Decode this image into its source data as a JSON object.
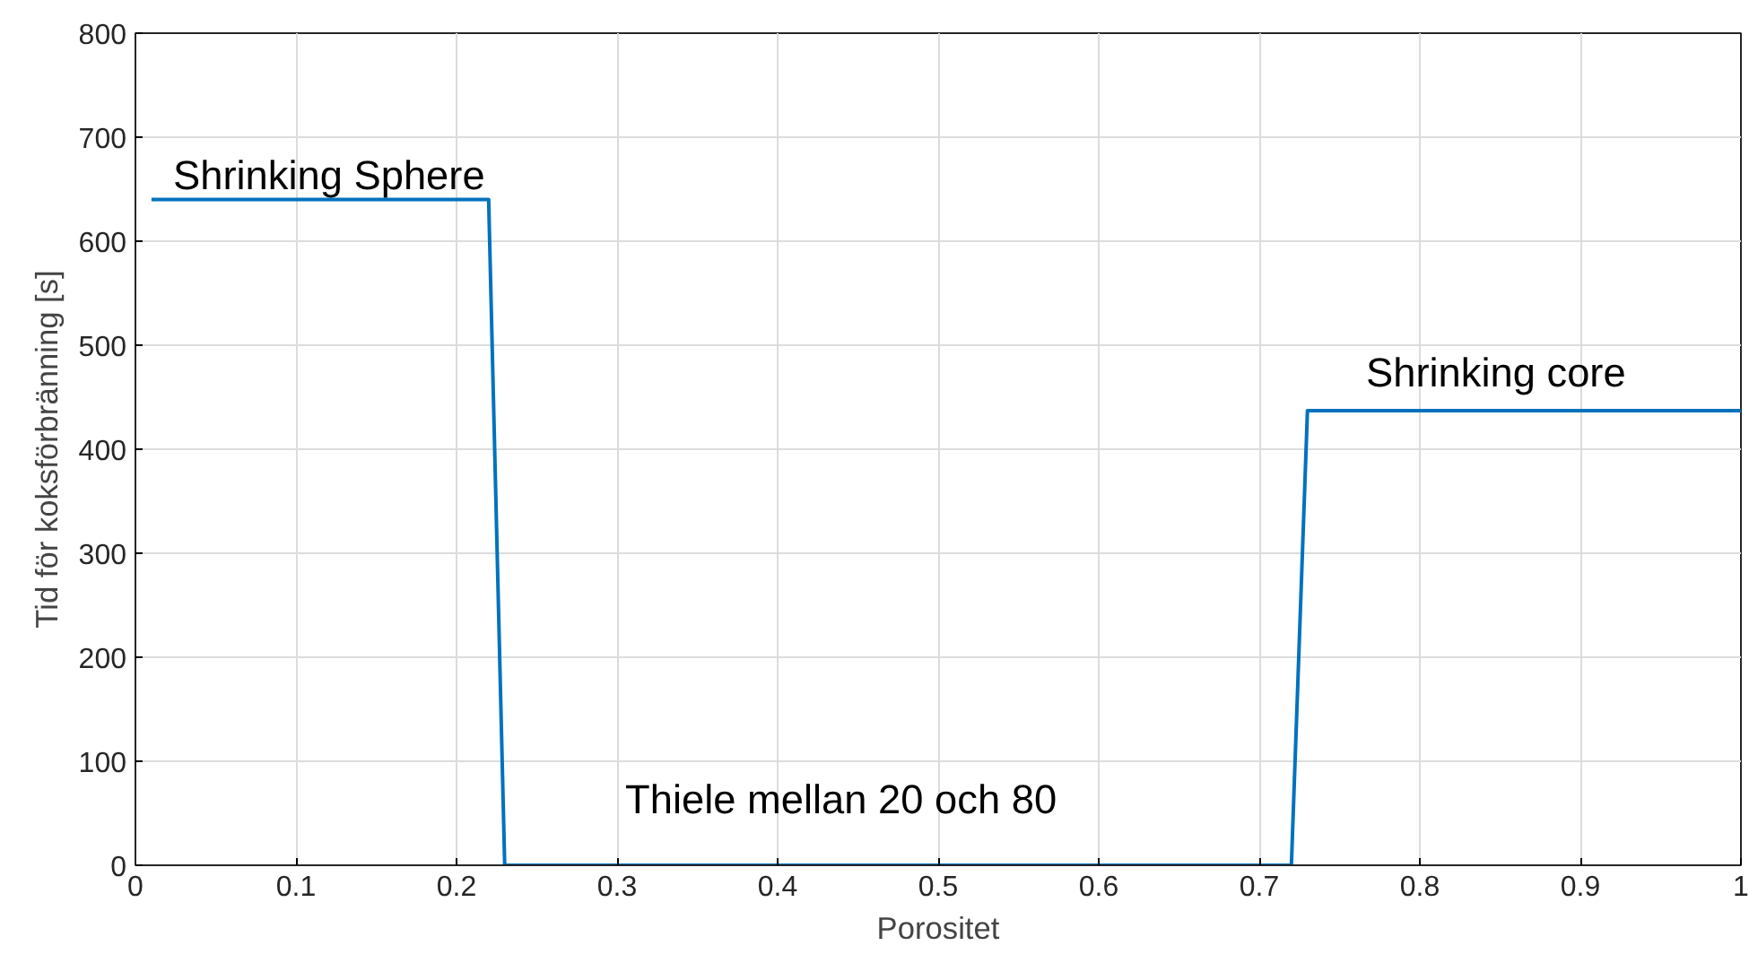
{
  "chart_data": {
    "type": "line",
    "xlabel": "Porositet",
    "ylabel": "Tid för koksförbränning [s]",
    "x": [
      0.01,
      0.22,
      0.23,
      0.72,
      0.73,
      1.0
    ],
    "series": [
      {
        "color": "#0072bd",
        "values": [
          640,
          640,
          0,
          0,
          437,
          437
        ]
      }
    ],
    "xlim": [
      0,
      1
    ],
    "ylim": [
      0,
      800
    ],
    "xticks": [
      0,
      0.1,
      0.2,
      0.3,
      0.4,
      0.5,
      0.6,
      0.7,
      0.8,
      0.9,
      1
    ],
    "yticks": [
      0,
      100,
      200,
      300,
      400,
      500,
      600,
      700,
      800
    ],
    "grid": true,
    "marker": "none",
    "line_style": "solid",
    "annotations": [
      "Shrinking Sphere",
      "Thiele mellan 20 och 80",
      "Shrinking core"
    ]
  }
}
